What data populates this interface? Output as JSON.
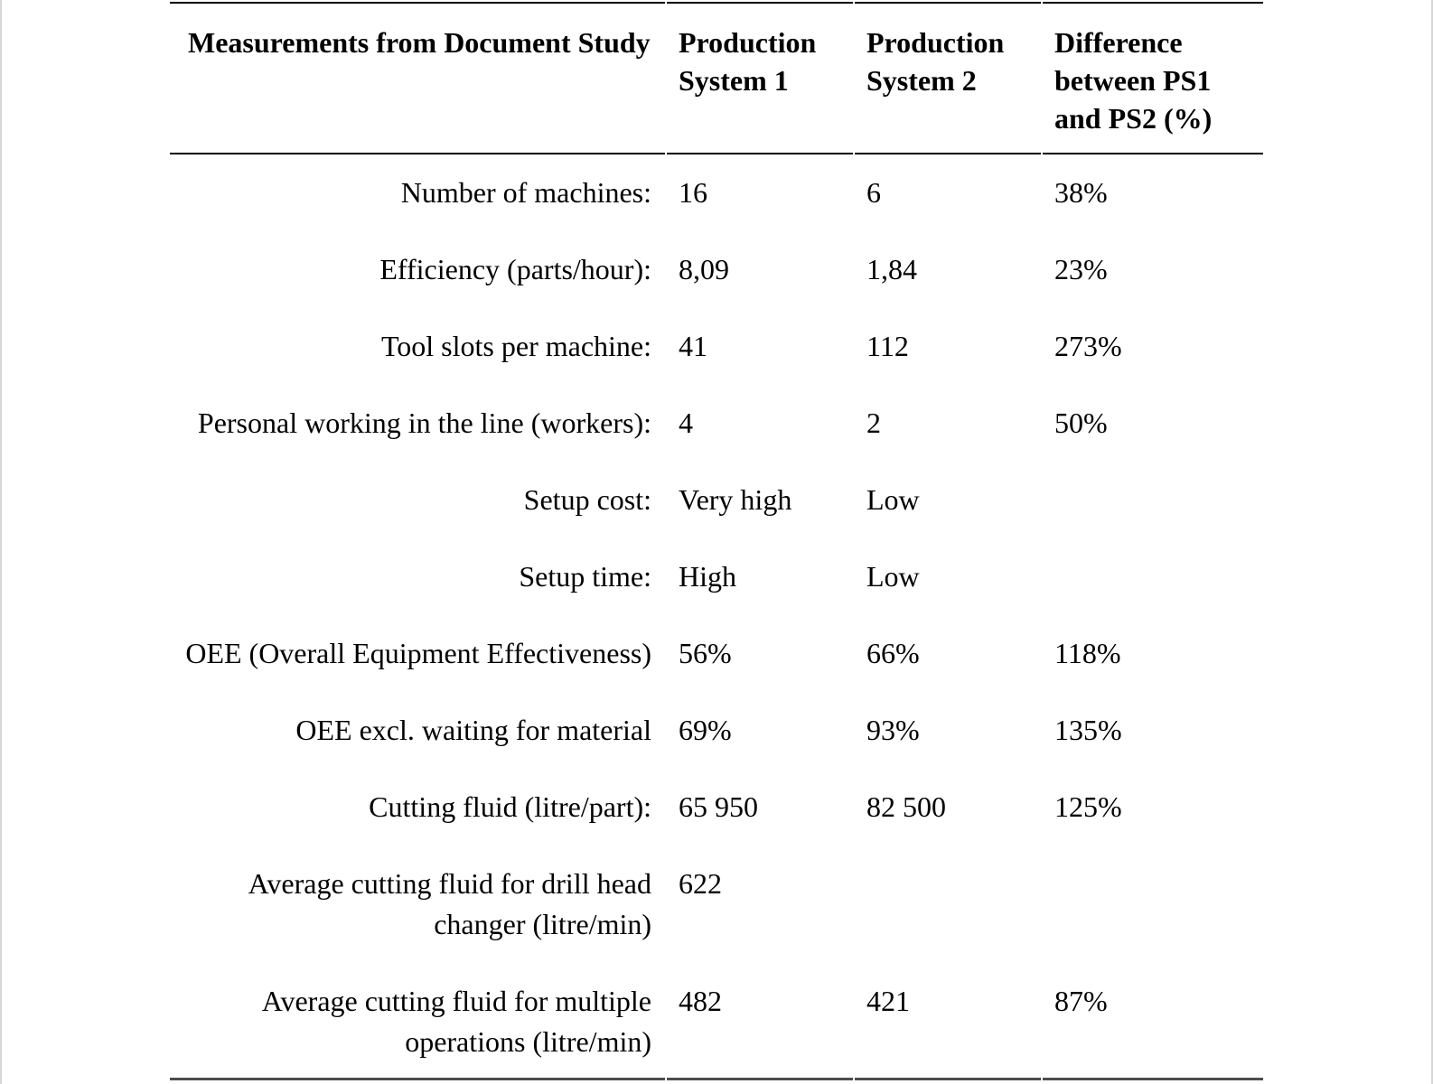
{
  "document": {
    "kind": "comparison-table",
    "colors": {
      "text": "#000000",
      "background": "#ffffff",
      "rule_top": "#000000",
      "rule_header_bottom": "#000000",
      "rule_table_bottom": "#4d4d4d",
      "page_edge": "#d6d6d6"
    }
  },
  "table": {
    "columns": [
      "Measurements from Document Study",
      "Production System 1",
      "Production System 2",
      "Difference between PS1 and PS2 (%)"
    ],
    "rows": [
      {
        "label": "Number of machines:",
        "ps1": "16",
        "ps2": "6",
        "diff": "38%",
        "lines": 1
      },
      {
        "label": "Efficiency (parts/hour):",
        "ps1": "8,09",
        "ps2": "1,84",
        "diff": "23%",
        "lines": 1
      },
      {
        "label": "Tool slots per machine:",
        "ps1": "41",
        "ps2": "112",
        "diff": "273%",
        "lines": 1
      },
      {
        "label": "Personal working in the line (workers):",
        "ps1": "4",
        "ps2": "2",
        "diff": "50%",
        "lines": 1
      },
      {
        "label": "Setup cost:",
        "ps1": "Very high",
        "ps2": "Low",
        "diff": "",
        "lines": 1
      },
      {
        "label": "Setup time:",
        "ps1": "High",
        "ps2": "Low",
        "diff": "",
        "lines": 1
      },
      {
        "label": "OEE (Overall Equipment Effectiveness)",
        "ps1": "56%",
        "ps2": "66%",
        "diff": "118%",
        "lines": 1
      },
      {
        "label": "OEE excl. waiting for material",
        "ps1": "69%",
        "ps2": "93%",
        "diff": "135%",
        "lines": 1
      },
      {
        "label": "Cutting fluid (litre/part):",
        "ps1": "65 950",
        "ps2": "82 500",
        "diff": "125%",
        "lines": 1
      },
      {
        "label": "Average cutting fluid for drill head changer (litre/min)",
        "ps1": "622",
        "ps2": "",
        "diff": "",
        "lines": 2
      },
      {
        "label": "Average cutting fluid for multiple operations (litre/min)",
        "ps1": "482",
        "ps2": "421",
        "diff": "87%",
        "lines": 2
      }
    ]
  }
}
